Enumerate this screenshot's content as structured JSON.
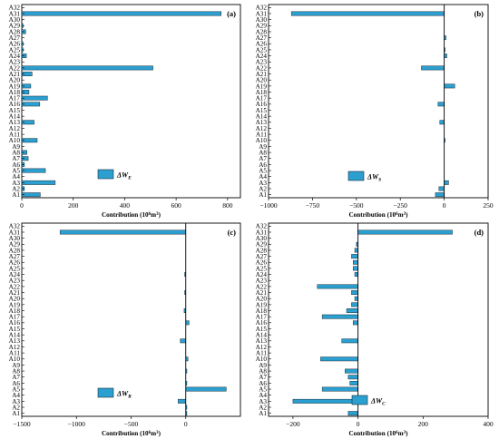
{
  "figure": {
    "colors": {
      "bar_fill": "#2a9fd0",
      "bar_stroke": "#1d2f3a",
      "axis": "#000000",
      "background": "#ffffff"
    }
  },
  "chart_data": [
    {
      "type": "bar",
      "orientation": "horizontal",
      "panel_label": "(a)",
      "legend": "ΔW_E",
      "legend_parts": {
        "main": "ΔW",
        "sub": "E"
      },
      "legend_position": "bottom-center",
      "xlabel": "Contribution (10⁶m³)",
      "xlabel_parts": {
        "prefix": "Contribution (10",
        "sup1": "6",
        "mid": "m",
        "sup2": "3",
        "suffix": ")"
      },
      "xlim": [
        0,
        850
      ],
      "xticks": [
        0,
        200,
        400,
        600,
        800
      ],
      "xtick_labels": [
        "0",
        "200",
        "400",
        "600",
        "800"
      ],
      "categories": [
        "A1",
        "A2",
        "A3",
        "A4",
        "A5",
        "A6",
        "A7",
        "A8",
        "A9",
        "A10",
        "A11",
        "A12",
        "A13",
        "A14",
        "A15",
        "A16",
        "A17",
        "A18",
        "A19",
        "A20",
        "A21",
        "A22",
        "A23",
        "A24",
        "A25",
        "A26",
        "A27",
        "A28",
        "A29",
        "A30",
        "A31",
        "A32"
      ],
      "values": [
        72,
        10,
        130,
        0,
        92,
        10,
        25,
        20,
        0,
        60,
        0,
        0,
        48,
        0,
        0,
        70,
        100,
        28,
        35,
        0,
        40,
        510,
        0,
        18,
        5,
        5,
        0,
        15,
        5,
        0,
        775,
        0
      ]
    },
    {
      "type": "bar",
      "orientation": "horizontal",
      "panel_label": "(b)",
      "legend": "ΔW_S",
      "legend_parts": {
        "main": "ΔW",
        "sub": "S"
      },
      "legend_position": "bottom-left",
      "xlabel": "Contribution (10⁶m³)",
      "xlabel_parts": {
        "prefix": "Contribution (10",
        "sup1": "6",
        "mid": "m",
        "sup2": "3",
        "suffix": ")"
      },
      "xlim": [
        -1000,
        250
      ],
      "xticks": [
        -1000,
        -750,
        -500,
        -250,
        0,
        250
      ],
      "xtick_labels": [
        "−1000",
        "−750",
        "−500",
        "−250",
        "0",
        "250"
      ],
      "categories": [
        "A1",
        "A2",
        "A3",
        "A4",
        "A5",
        "A6",
        "A7",
        "A8",
        "A9",
        "A10",
        "A11",
        "A12",
        "A13",
        "A14",
        "A15",
        "A16",
        "A17",
        "A18",
        "A19",
        "A20",
        "A21",
        "A22",
        "A23",
        "A24",
        "A25",
        "A26",
        "A27",
        "A28",
        "A29",
        "A30",
        "A31",
        "A32"
      ],
      "values": [
        -50,
        -30,
        25,
        0,
        0,
        0,
        0,
        0,
        0,
        5,
        0,
        0,
        -25,
        0,
        0,
        -35,
        0,
        0,
        60,
        0,
        0,
        -130,
        0,
        15,
        5,
        0,
        10,
        0,
        0,
        0,
        -870,
        0
      ]
    },
    {
      "type": "bar",
      "orientation": "horizontal",
      "panel_label": "(c)",
      "legend": "ΔW_R",
      "legend_parts": {
        "main": "ΔW",
        "sub": "R"
      },
      "legend_position": "bottom-center",
      "xlabel": "Contribution (10⁶m³)",
      "xlabel_parts": {
        "prefix": "Contribution (10",
        "sup1": "6",
        "mid": "m",
        "sup2": "3",
        "suffix": ")"
      },
      "xlim": [
        -1500,
        500
      ],
      "xticks": [
        -1500,
        -1000,
        -500,
        0
      ],
      "xtick_labels": [
        "−1500",
        "−1000",
        "−500",
        "0"
      ],
      "categories": [
        "A1",
        "A2",
        "A3",
        "A4",
        "A5",
        "A6",
        "A7",
        "A8",
        "A9",
        "A10",
        "A11",
        "A12",
        "A13",
        "A14",
        "A15",
        "A16",
        "A17",
        "A18",
        "A19",
        "A20",
        "A21",
        "A22",
        "A23",
        "A24",
        "A25",
        "A26",
        "A27",
        "A28",
        "A29",
        "A30",
        "A31",
        "A32"
      ],
      "values": [
        10,
        10,
        -70,
        0,
        370,
        10,
        0,
        10,
        0,
        20,
        0,
        0,
        -50,
        0,
        0,
        30,
        0,
        -15,
        0,
        0,
        -10,
        0,
        0,
        -10,
        0,
        0,
        0,
        0,
        0,
        0,
        -1150,
        0
      ]
    },
    {
      "type": "bar",
      "orientation": "horizontal",
      "panel_label": "(d)",
      "legend": "ΔW_C",
      "legend_parts": {
        "main": "ΔW",
        "sub": "C"
      },
      "legend_position": "bottom-right",
      "xlabel": "Contribution (10⁶m³)",
      "xlabel_parts": {
        "prefix": "Contribution (10",
        "sup1": "6",
        "mid": "m",
        "sup2": "3",
        "suffix": ")"
      },
      "xlim": [
        -275,
        400
      ],
      "xticks": [
        -200,
        0,
        200,
        400
      ],
      "xtick_labels": [
        "−200",
        "0",
        "200",
        "400"
      ],
      "categories": [
        "A1",
        "A2",
        "A3",
        "A4",
        "A5",
        "A6",
        "A7",
        "A8",
        "A9",
        "A10",
        "A11",
        "A12",
        "A13",
        "A14",
        "A15",
        "A16",
        "A17",
        "A18",
        "A19",
        "A20",
        "A21",
        "A22",
        "A23",
        "A24",
        "A25",
        "A26",
        "A27",
        "A28",
        "A29",
        "A30",
        "A31",
        "A32"
      ],
      "values": [
        -30,
        0,
        -200,
        0,
        -110,
        -25,
        -30,
        -40,
        0,
        -115,
        0,
        0,
        -50,
        0,
        0,
        -15,
        -110,
        -35,
        -20,
        -10,
        -20,
        -125,
        0,
        -10,
        -15,
        -15,
        -20,
        -10,
        -5,
        0,
        290,
        0
      ]
    }
  ]
}
